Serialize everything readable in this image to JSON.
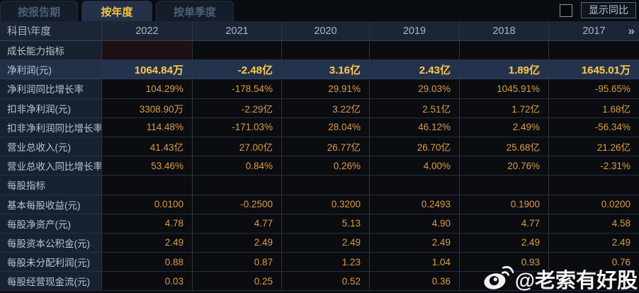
{
  "tabs": [
    {
      "label": "按报告期",
      "active": false
    },
    {
      "label": "按年度",
      "active": true
    },
    {
      "label": "按单季度",
      "active": false
    }
  ],
  "controls": {
    "show_yoy_label": "显示同比",
    "checkbox_checked": false
  },
  "table": {
    "corner_label": "科目\\年度",
    "years": [
      "2022",
      "2021",
      "2020",
      "2019",
      "2018",
      "2017"
    ],
    "more_arrow": "»",
    "rows": [
      {
        "type": "section",
        "label": "成长能力指标",
        "tinted_cols": [
          0
        ],
        "values": [
          "",
          "",
          "",
          "",
          "",
          ""
        ]
      },
      {
        "type": "highlight",
        "label": "净利润(元)",
        "values": [
          "1064.84万",
          "-2.48亿",
          "3.16亿",
          "2.43亿",
          "1.89亿",
          "1645.01万"
        ]
      },
      {
        "type": "data",
        "label": "净利润同比增长率",
        "values": [
          "104.29%",
          "-178.54%",
          "29.91%",
          "29.03%",
          "1045.91%",
          "-95.65%"
        ]
      },
      {
        "type": "data",
        "label": "扣非净利润(元)",
        "values": [
          "3308.90万",
          "-2.29亿",
          "3.22亿",
          "2.51亿",
          "1.72亿",
          "1.68亿"
        ]
      },
      {
        "type": "data",
        "label": "扣非净利润同比增长率",
        "values": [
          "114.48%",
          "-171.03%",
          "28.04%",
          "46.12%",
          "2.49%",
          "-56.34%"
        ]
      },
      {
        "type": "data",
        "label": "营业总收入(元)",
        "values": [
          "41.43亿",
          "27.00亿",
          "26.77亿",
          "26.70亿",
          "25.68亿",
          "21.26亿"
        ]
      },
      {
        "type": "data",
        "label": "营业总收入同比增长率",
        "values": [
          "53.46%",
          "0.84%",
          "0.26%",
          "4.00%",
          "20.76%",
          "-2.31%"
        ]
      },
      {
        "type": "section",
        "label": "每股指标",
        "values": [
          "",
          "",
          "",
          "",
          "",
          ""
        ]
      },
      {
        "type": "data",
        "label": "基本每股收益(元)",
        "values": [
          "0.0100",
          "-0.2500",
          "0.3200",
          "0.2493",
          "0.1900",
          "0.0200"
        ]
      },
      {
        "type": "data",
        "label": "每股净资产(元)",
        "values": [
          "4.78",
          "4.77",
          "5.13",
          "4.90",
          "4.77",
          "4.58"
        ]
      },
      {
        "type": "data",
        "label": "每股资本公积金(元)",
        "values": [
          "2.49",
          "2.49",
          "2.49",
          "2.49",
          "2.49",
          "2.49"
        ]
      },
      {
        "type": "data",
        "label": "每股未分配利润(元)",
        "values": [
          "0.88",
          "0.87",
          "1.23",
          "1.04",
          "0.93",
          "0.76"
        ]
      },
      {
        "type": "data",
        "label": "每股经营现金流(元)",
        "values": [
          "0.03",
          "0.25",
          "0.52",
          "0.36",
          "",
          ""
        ]
      }
    ]
  },
  "watermark": {
    "text": "@老索有好股",
    "icon": "weibo-icon"
  },
  "colors": {
    "background": "#0a0d12",
    "header_bg": "#1b2535",
    "label_col_bg": "#182130",
    "value_text": "#dd9c44",
    "highlight_row_bg": "#24334d",
    "highlight_value_text": "#ffc84d",
    "active_tab_text": "#f5c342",
    "inactive_tab_text": "#4d5f77",
    "watermark_text": "#ffffff"
  }
}
